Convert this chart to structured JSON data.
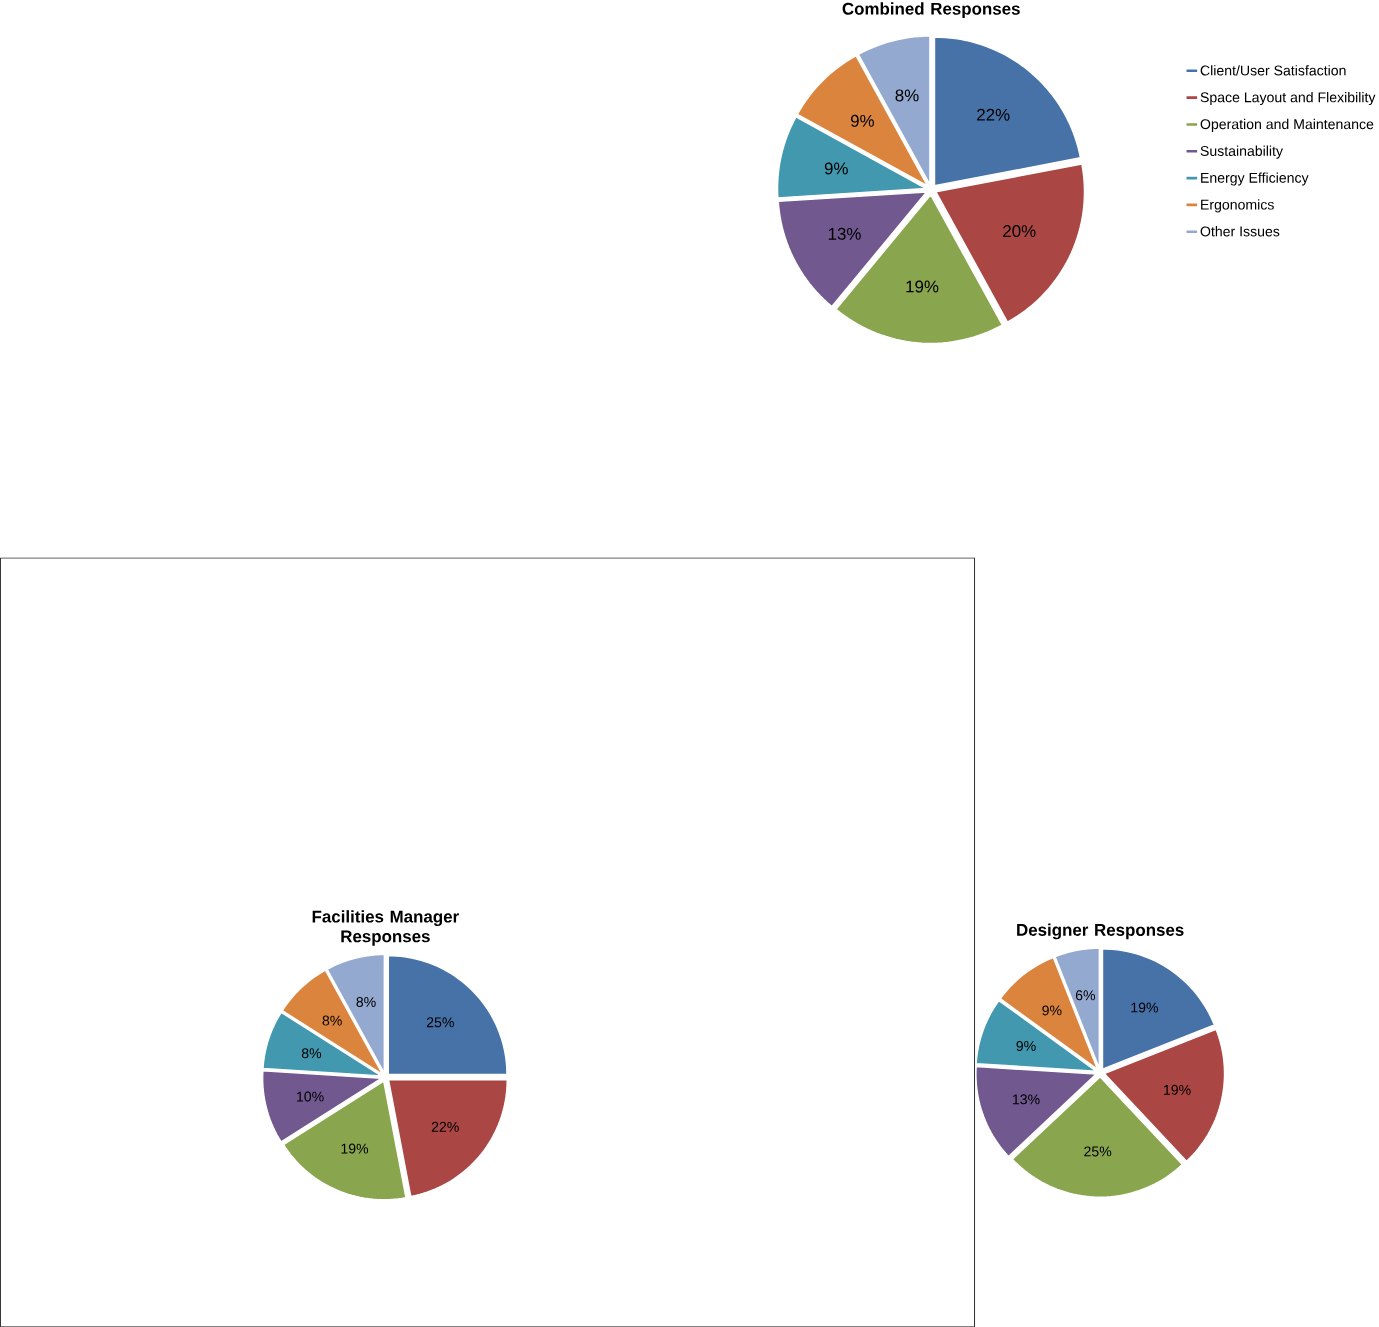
{
  "chart_data": [
    {
      "type": "pie",
      "title": "Combined Responses",
      "categories": [
        "Client/User Satisfaction",
        "Space Layout and Flexibility",
        "Operation and Maintenance",
        "Sustainability",
        "Energy Efficiency",
        "Ergonomics",
        "Other Issues"
      ],
      "values": [
        22,
        20,
        19,
        13,
        9,
        9,
        8
      ],
      "value_labels": [
        "22%",
        "20%",
        "19%",
        "13%",
        "9%",
        "9%",
        "8%"
      ],
      "colors": [
        "#4672a8",
        "#aa4643",
        "#89a54e",
        "#71588f",
        "#4198af",
        "#db843d",
        "#93a9cf"
      ],
      "legend": "right"
    },
    {
      "type": "pie",
      "title": "Facilities Manager Responses",
      "categories": [
        null,
        null,
        null,
        null,
        null,
        null,
        null
      ],
      "values": [
        25,
        22,
        19,
        10,
        8,
        8,
        8
      ],
      "value_labels": [
        "25%",
        "22%",
        "19%",
        "10%",
        "8%",
        "8%",
        "8%"
      ],
      "colors": [
        "#4672a8",
        "#aa4643",
        "#89a54e",
        "#71588f",
        "#4198af",
        "#db843d",
        "#93a9cf"
      ]
    },
    {
      "type": "pie",
      "title": "Designer Responses",
      "categories": [
        null,
        null,
        null,
        null,
        null,
        null,
        null
      ],
      "values": [
        19,
        19,
        25,
        13,
        9,
        9,
        6
      ],
      "value_labels": [
        "19%",
        "19%",
        "25%",
        "13%",
        "9%",
        "9%",
        "6%"
      ],
      "colors": [
        "#4672a8",
        "#aa4643",
        "#89a54e",
        "#71588f",
        "#4198af",
        "#db843d",
        "#93a9cf"
      ]
    }
  ]
}
